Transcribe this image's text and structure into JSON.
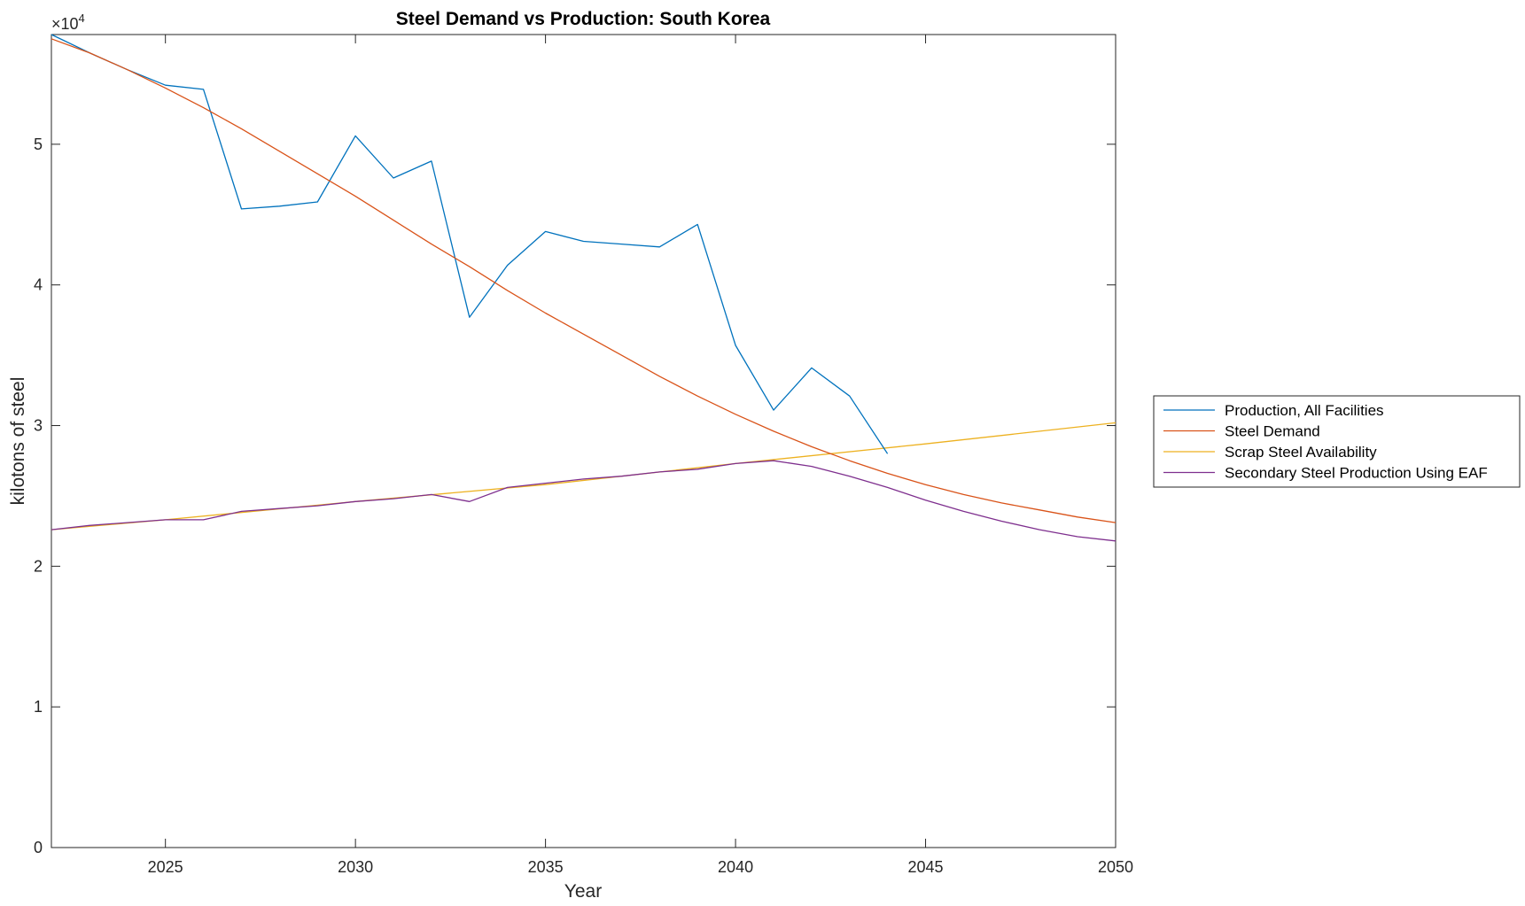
{
  "chart_data": {
    "type": "line",
    "title": "Steel Demand vs Production: South Korea",
    "xlabel": "Year",
    "ylabel": "kilotons of steel",
    "xlim": [
      2022,
      2050
    ],
    "ylim": [
      0,
      57800
    ],
    "xticks": [
      2025,
      2030,
      2035,
      2040,
      2045,
      2050
    ],
    "yticks": [
      0,
      10000,
      20000,
      30000,
      40000,
      50000
    ],
    "ytick_labels": [
      "0",
      "1",
      "2",
      "3",
      "4",
      "5"
    ],
    "y_exponent_label": "×10",
    "y_exponent_power": "4",
    "grid": false,
    "legend_position": "outside-right",
    "series": [
      {
        "name": "Production, All Facilities",
        "color": "#0072BD",
        "x": [
          2022,
          2023,
          2024,
          2025,
          2026,
          2027,
          2028,
          2029,
          2030,
          2031,
          2032,
          2033,
          2034,
          2035,
          2036,
          2037,
          2038,
          2039,
          2040,
          2041,
          2042,
          2043,
          2044
        ],
        "y": [
          57800,
          56500,
          55300,
          54200,
          53900,
          45400,
          45600,
          45900,
          50600,
          47600,
          48800,
          37700,
          41400,
          43800,
          43100,
          42900,
          42700,
          44300,
          35700,
          31100,
          34100,
          32100,
          28000
        ]
      },
      {
        "name": "Steel Demand",
        "color": "#D95319",
        "x": [
          2022,
          2023,
          2024,
          2025,
          2026,
          2027,
          2028,
          2029,
          2030,
          2031,
          2032,
          2033,
          2034,
          2035,
          2036,
          2037,
          2038,
          2039,
          2040,
          2041,
          2042,
          2043,
          2044,
          2045,
          2046,
          2047,
          2048,
          2049,
          2050
        ],
        "y": [
          57500,
          56500,
          55300,
          54000,
          52600,
          51100,
          49500,
          47900,
          46300,
          44600,
          42900,
          41300,
          39600,
          38000,
          36500,
          35000,
          33500,
          32100,
          30800,
          29600,
          28500,
          27500,
          26600,
          25800,
          25100,
          24500,
          24000,
          23500,
          23100
        ]
      },
      {
        "name": "Scrap Steel Availability",
        "color": "#EDB120",
        "x": [
          2022,
          2025,
          2030,
          2035,
          2040,
          2045,
          2050
        ],
        "y": [
          22600,
          23300,
          24600,
          25800,
          27300,
          28700,
          30200
        ]
      },
      {
        "name": "Secondary Steel Production Using EAF",
        "color": "#7E2F8E",
        "x": [
          2022,
          2023,
          2024,
          2025,
          2026,
          2027,
          2028,
          2029,
          2030,
          2031,
          2032,
          2033,
          2034,
          2035,
          2036,
          2037,
          2038,
          2039,
          2040,
          2041,
          2042,
          2043,
          2044,
          2045,
          2046,
          2047,
          2048,
          2049,
          2050
        ],
        "y": [
          22600,
          22900,
          23100,
          23300,
          23300,
          23900,
          24100,
          24300,
          24600,
          24800,
          25100,
          24600,
          25600,
          25900,
          26200,
          26400,
          26700,
          26900,
          27300,
          27500,
          27100,
          26400,
          25600,
          24700,
          23900,
          23200,
          22600,
          22100,
          21800
        ]
      }
    ]
  }
}
